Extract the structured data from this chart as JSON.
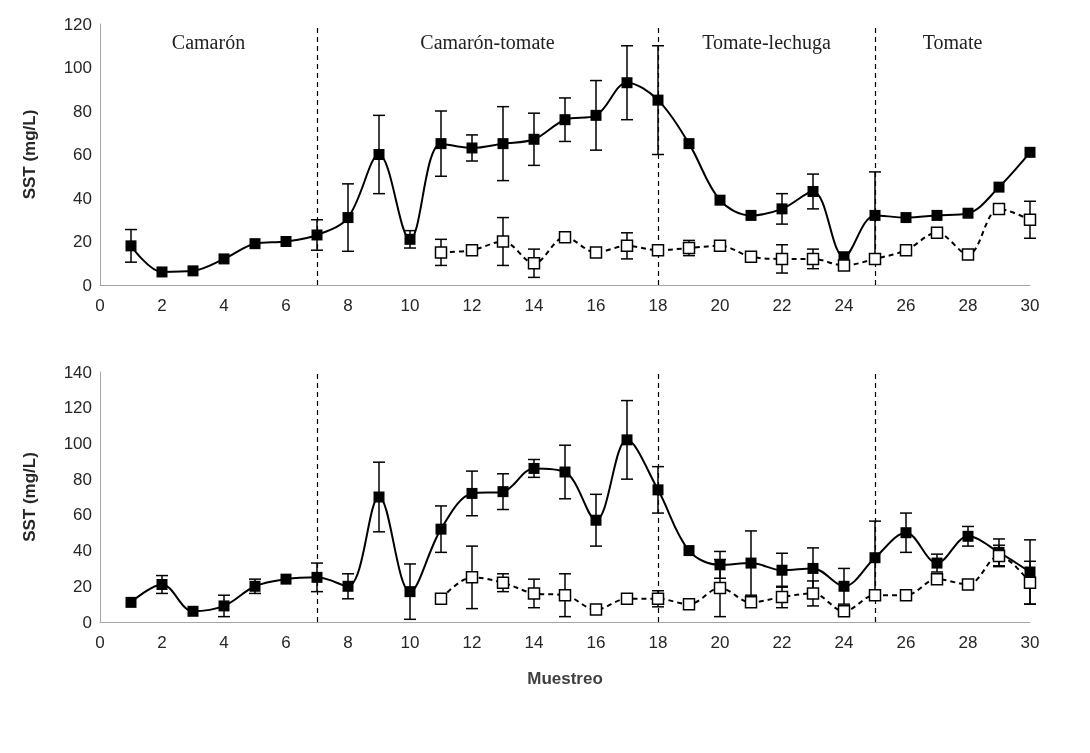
{
  "chart_data": [
    {
      "type": "line",
      "ylabel": "SST (mg/L)",
      "xlim": [
        0,
        30
      ],
      "xticks": [
        0,
        2,
        4,
        6,
        8,
        10,
        12,
        14,
        16,
        18,
        20,
        22,
        24,
        26,
        28,
        30
      ],
      "ylim": [
        0,
        120
      ],
      "yticks": [
        0,
        20,
        40,
        60,
        80,
        100,
        120
      ],
      "grid": false,
      "marker": "square",
      "x": [
        1,
        2,
        3,
        4,
        5,
        6,
        7,
        8,
        9,
        10,
        11,
        12,
        13,
        14,
        15,
        16,
        17,
        18,
        19,
        20,
        21,
        22,
        23,
        24,
        25,
        26,
        27,
        28,
        29,
        30
      ],
      "series": [
        {
          "color": "#000000",
          "line_style": "solid",
          "values": [
            18,
            6,
            6.5,
            12,
            19,
            20,
            23,
            31,
            60,
            21,
            65,
            63,
            65,
            67,
            76,
            78,
            93,
            85,
            65,
            39,
            32,
            35,
            43,
            13,
            32,
            31,
            32,
            33,
            45,
            61
          ],
          "errors": [
            7.5,
            null,
            null,
            null,
            null,
            null,
            7,
            15.5,
            18,
            4,
            15,
            6,
            17,
            12,
            10,
            16,
            17,
            25,
            null,
            null,
            null,
            7,
            8,
            null,
            20,
            null,
            null,
            null,
            null,
            null
          ]
        },
        {
          "color": "#000000",
          "line_style": "dashed",
          "values": [
            null,
            null,
            null,
            null,
            null,
            null,
            null,
            null,
            null,
            null,
            15,
            16,
            20,
            10,
            22,
            15,
            18,
            16,
            17,
            18,
            13,
            12,
            12,
            9,
            12,
            16,
            24,
            14,
            35,
            30
          ],
          "errors": [
            null,
            null,
            null,
            null,
            null,
            null,
            null,
            null,
            null,
            null,
            6,
            null,
            11,
            6.5,
            null,
            null,
            6,
            null,
            3.5,
            null,
            null,
            6.5,
            4.5,
            null,
            null,
            null,
            null,
            null,
            null,
            8.5
          ]
        }
      ],
      "ref_lines": [
        {
          "axis": "x",
          "value": 7
        },
        {
          "axis": "x",
          "value": 18
        },
        {
          "axis": "x",
          "value": 25
        }
      ],
      "annotations": [
        "Camarón",
        "Camarón-tomate",
        "Tomate-lechuga",
        "Tomate"
      ]
    },
    {
      "type": "line",
      "ylabel": "SST (mg/L)",
      "xlabel": "Muestreo",
      "xlim": [
        0,
        30
      ],
      "xticks": [
        0,
        2,
        4,
        6,
        8,
        10,
        12,
        14,
        16,
        18,
        20,
        22,
        24,
        26,
        28,
        30
      ],
      "ylim": [
        0,
        140
      ],
      "yticks": [
        0,
        20,
        40,
        60,
        80,
        100,
        120,
        140
      ],
      "grid": false,
      "marker": "square",
      "x": [
        1,
        2,
        3,
        4,
        5,
        6,
        7,
        8,
        9,
        10,
        11,
        12,
        13,
        14,
        15,
        16,
        17,
        18,
        19,
        20,
        21,
        22,
        23,
        24,
        25,
        26,
        27,
        28,
        29,
        30
      ],
      "series": [
        {
          "color": "#000000",
          "line_style": "solid",
          "values": [
            11,
            21,
            6,
            9,
            20,
            24,
            25,
            20,
            70,
            17,
            52,
            72,
            73,
            86,
            84,
            57,
            102,
            74,
            40,
            32,
            33,
            29,
            30,
            20,
            36,
            50,
            33,
            48,
            39,
            28
          ],
          "errors": [
            null,
            5,
            null,
            6,
            4,
            null,
            8,
            7,
            19.5,
            15.5,
            13,
            12.5,
            10,
            5,
            15,
            14.5,
            22,
            13,
            null,
            7.5,
            18,
            9.5,
            11.5,
            10,
            20.5,
            11,
            5,
            5.5,
            7.5,
            18
          ]
        },
        {
          "color": "#000000",
          "line_style": "dashed",
          "values": [
            null,
            null,
            null,
            null,
            null,
            null,
            null,
            null,
            null,
            null,
            13,
            25,
            22,
            16,
            15,
            7,
            13,
            13,
            10,
            19,
            11,
            14,
            16,
            6,
            15,
            15,
            24,
            21,
            37,
            22
          ],
          "errors": [
            null,
            null,
            null,
            null,
            null,
            null,
            null,
            null,
            null,
            null,
            null,
            17.5,
            5,
            8,
            12,
            null,
            null,
            4.5,
            null,
            16,
            null,
            6,
            7,
            null,
            null,
            null,
            null,
            null,
            6,
            12
          ]
        }
      ],
      "ref_lines": [
        {
          "axis": "x",
          "value": 7
        },
        {
          "axis": "x",
          "value": 18
        },
        {
          "axis": "x",
          "value": 25
        }
      ]
    }
  ]
}
